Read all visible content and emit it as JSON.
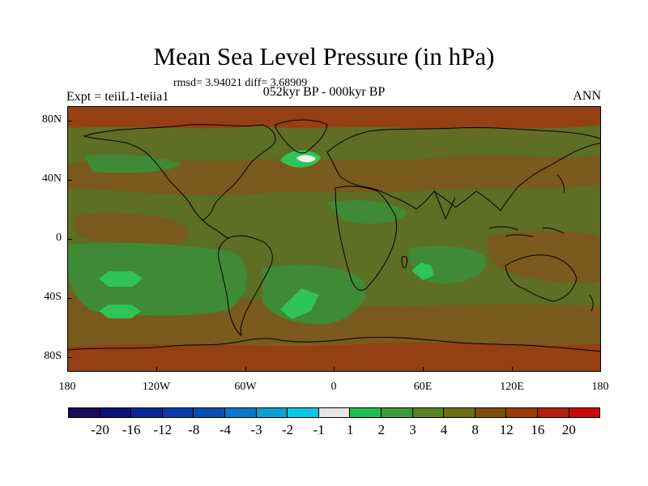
{
  "title": "Mean Sea Level Pressure (in hPa)",
  "stats": "rmsd= 3.94021 diff= 3.68909",
  "period": "052kyr BP - 000kyr BP",
  "experiment": "Expt = teiiL1-teiia1",
  "season": "ANN",
  "lat_labels": [
    "80N",
    "40N",
    "0",
    "40S",
    "80S"
  ],
  "lon_labels": [
    "180",
    "120W",
    "60W",
    "0",
    "60E",
    "120E",
    "180"
  ],
  "colorbar": {
    "colors": [
      "#1a0a5a",
      "#0a1478",
      "#0a2896",
      "#0a3caa",
      "#0a50b4",
      "#0a78c8",
      "#0aa0d2",
      "#0ac8e6",
      "#e6e6e6",
      "#1ebe50",
      "#3c9a3c",
      "#5a8228",
      "#6e6e14",
      "#7d500a",
      "#9b3c0a",
      "#b41e0a",
      "#c80a0a"
    ],
    "labels": [
      "-20",
      "-16",
      "-12",
      "-8",
      "-4",
      "-3",
      "-2",
      "-1",
      "1",
      "2",
      "3",
      "4",
      "8",
      "12",
      "16",
      "20"
    ]
  },
  "field_colors": {
    "base": "#5e6e24",
    "warm": "#7a5a1e",
    "hot": "#944014",
    "light": "#3f8a34",
    "bright": "#2ec456",
    "white": "#f0f0f0",
    "coast": "#000000"
  }
}
